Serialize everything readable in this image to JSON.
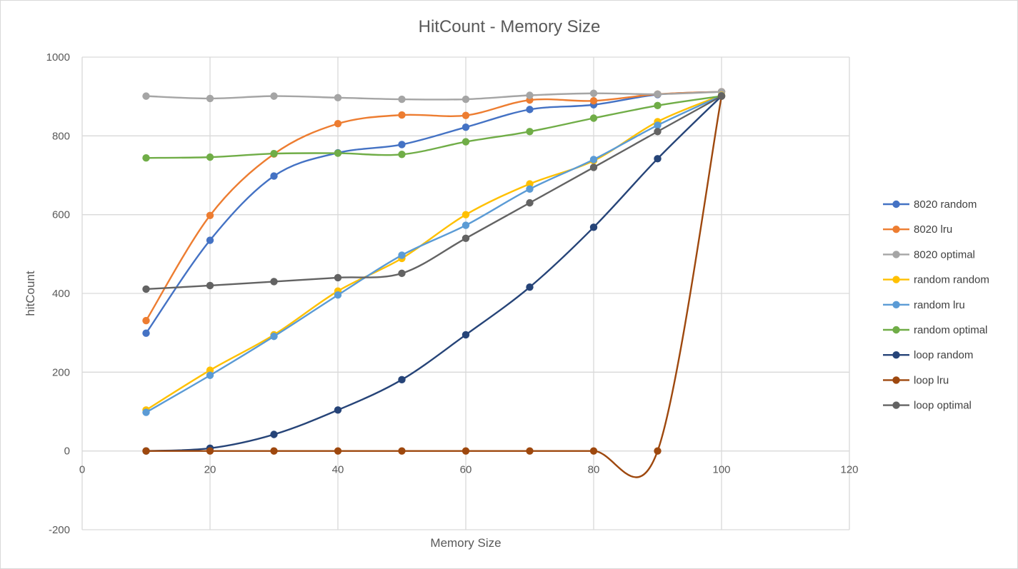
{
  "chart_data": {
    "type": "scatter",
    "title": "HitCount - Memory Size",
    "xlabel": "Memory Size",
    "ylabel": "hitCount",
    "xlim": [
      0,
      120
    ],
    "ylim": [
      -200,
      1000
    ],
    "x_ticks": [
      0,
      20,
      40,
      60,
      80,
      100,
      120
    ],
    "y_ticks": [
      -200,
      0,
      200,
      400,
      600,
      800,
      1000
    ],
    "x_tick_labels": [
      "0",
      "20",
      "40",
      "60",
      "80",
      "100",
      "120"
    ],
    "y_tick_labels": [
      "-200",
      "0",
      "200",
      "400",
      "600",
      "800",
      "1000"
    ],
    "grid": true,
    "smooth_lines": true,
    "legend_position": "right",
    "x": [
      10,
      20,
      30,
      40,
      50,
      60,
      70,
      80,
      90,
      100
    ],
    "series": [
      {
        "name": "8020 random",
        "color": "#4472c4",
        "values": [
          299,
          535,
          698,
          757,
          778,
          822,
          867,
          879,
          905,
          912
        ]
      },
      {
        "name": "8020 lru",
        "color": "#ed7d31",
        "values": [
          331,
          598,
          754,
          831,
          853,
          852,
          891,
          889,
          906,
          912
        ]
      },
      {
        "name": "8020 optimal",
        "color": "#a5a5a5",
        "values": [
          901,
          895,
          901,
          897,
          893,
          893,
          903,
          908,
          906,
          912
        ]
      },
      {
        "name": "random random",
        "color": "#ffc000",
        "values": [
          104,
          205,
          295,
          406,
          489,
          600,
          678,
          737,
          836,
          903
        ]
      },
      {
        "name": "random lru",
        "color": "#5b9bd5",
        "values": [
          98,
          192,
          291,
          396,
          497,
          573,
          665,
          740,
          827,
          902
        ]
      },
      {
        "name": "random optimal",
        "color": "#70ad47",
        "values": [
          744,
          746,
          755,
          756,
          753,
          785,
          811,
          845,
          877,
          901
        ]
      },
      {
        "name": "loop random",
        "color": "#264478",
        "values": [
          0,
          7,
          42,
          104,
          181,
          295,
          416,
          568,
          742,
          901
        ]
      },
      {
        "name": "loop lru",
        "color": "#9e480e",
        "values": [
          0,
          0,
          0,
          0,
          0,
          0,
          0,
          0,
          0,
          901
        ]
      },
      {
        "name": "loop optimal",
        "color": "#636363",
        "values": [
          411,
          420,
          430,
          440,
          451,
          540,
          630,
          720,
          811,
          901
        ]
      }
    ]
  }
}
